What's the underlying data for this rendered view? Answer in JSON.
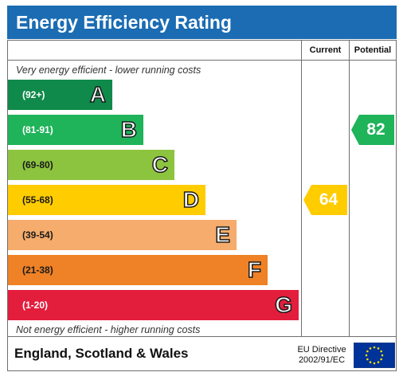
{
  "title": "Energy Efficiency Rating",
  "columns": {
    "current": "Current",
    "potential": "Potential"
  },
  "top_note": "Very energy efficient - lower running costs",
  "bottom_note": "Not energy efficient - higher running costs",
  "bands": [
    {
      "range": "(92+)",
      "letter": "A",
      "color": "#0f8a4a"
    },
    {
      "range": "(81-91)",
      "letter": "B",
      "color": "#1fb35a"
    },
    {
      "range": "(69-80)",
      "letter": "C",
      "color": "#8cc43f"
    },
    {
      "range": "(55-68)",
      "letter": "D",
      "color": "#ffcc00"
    },
    {
      "range": "(39-54)",
      "letter": "E",
      "color": "#f5ac6c"
    },
    {
      "range": "(21-38)",
      "letter": "F",
      "color": "#ef8126"
    },
    {
      "range": "(1-20)",
      "letter": "G",
      "color": "#e31d3c"
    }
  ],
  "current": {
    "value": "64",
    "band": "D",
    "color": "#ffcc00"
  },
  "potential": {
    "value": "82",
    "band": "B",
    "color": "#1fb35a"
  },
  "footer": {
    "region": "England, Scotland & Wales",
    "directive_line1": "EU Directive",
    "directive_line2": "2002/91/EC",
    "flag_icon": "eu-flag-icon",
    "flag_color": "#003399",
    "star_color": "#ffdd00"
  }
}
